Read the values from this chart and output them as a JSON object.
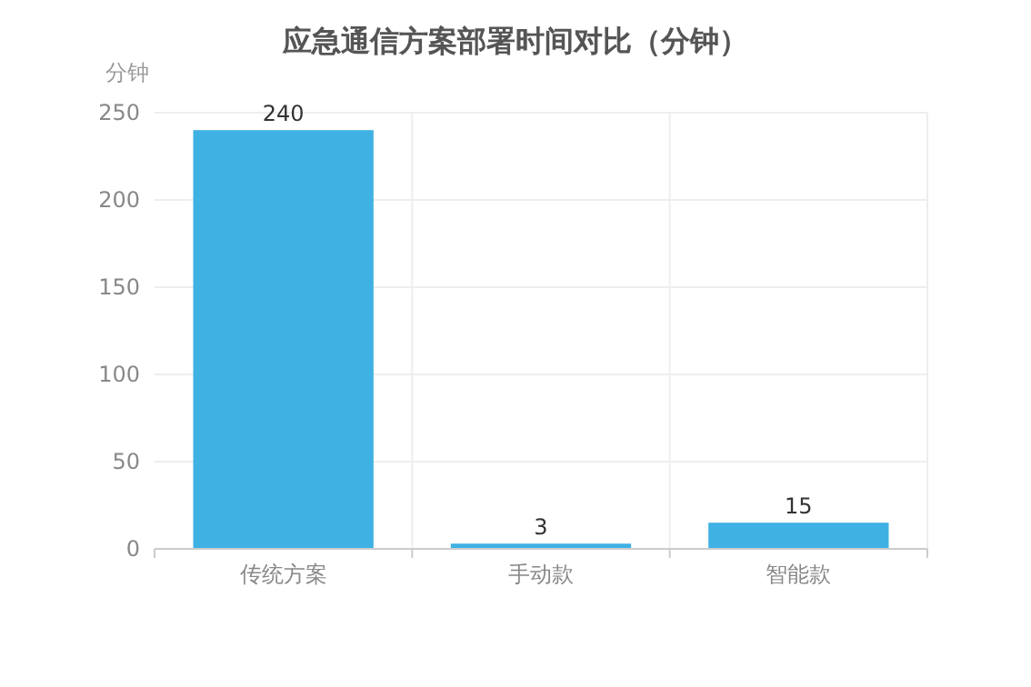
{
  "chart_data": {
    "type": "bar",
    "title": "应急通信方案部署时间对比（分钟）",
    "ylabel": "分钟",
    "categories": [
      "传统方案",
      "手动款",
      "智能款"
    ],
    "values": [
      240,
      3,
      15
    ],
    "color": "#3fb1e3",
    "ylim": [
      0,
      250
    ],
    "yticks": [
      0,
      50,
      100,
      150,
      200,
      250
    ],
    "grid": true,
    "data_labels": true
  }
}
